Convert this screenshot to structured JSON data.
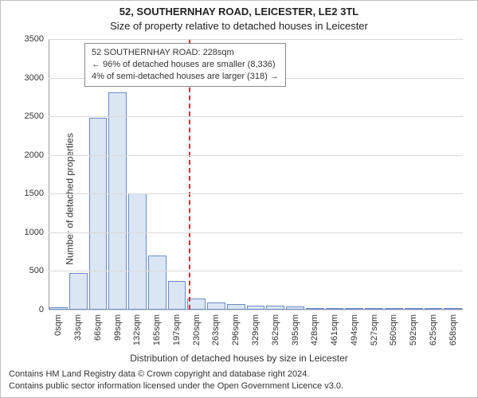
{
  "title": "52, SOUTHERNHAY ROAD, LEICESTER, LE2 3TL",
  "subtitle": "Size of property relative to detached houses in Leicester",
  "ylabel": "Number of detached properties",
  "xlabel": "Distribution of detached houses by size in Leicester",
  "footer_line1": "Contains HM Land Registry data © Crown copyright and database right 2024.",
  "footer_line2": "Contains public sector information licensed under the Open Government Licence v3.0.",
  "chart": {
    "type": "bar",
    "ylim": [
      0,
      3500
    ],
    "ytick_step": 500,
    "background_color": "#ffffff",
    "grid_color": "#d9d9d9",
    "axis_color": "#999999",
    "bar_fill": "#dbe6f5",
    "bar_stroke": "#6b8cc2",
    "marker_color": "#cc3333",
    "marker_x": 228,
    "xmin": 0,
    "xmax": 675,
    "categories": [
      "0sqm",
      "33sqm",
      "66sqm",
      "99sqm",
      "132sqm",
      "165sqm",
      "197sqm",
      "230sqm",
      "263sqm",
      "296sqm",
      "329sqm",
      "362sqm",
      "395sqm",
      "428sqm",
      "461sqm",
      "494sqm",
      "527sqm",
      "560sqm",
      "592sqm",
      "625sqm",
      "658sqm"
    ],
    "values": [
      30,
      470,
      2480,
      2810,
      1500,
      700,
      370,
      140,
      90,
      70,
      55,
      50,
      40,
      10,
      5,
      5,
      5,
      5,
      5,
      5,
      5
    ],
    "label_fontsize": 11,
    "title_fontsize": 13
  },
  "infobox": {
    "line1": "52 SOUTHERNHAY ROAD: 228sqm",
    "line2": "← 96% of detached houses are smaller (8,336)",
    "line3": "4% of semi-detached houses are larger (318) →"
  }
}
